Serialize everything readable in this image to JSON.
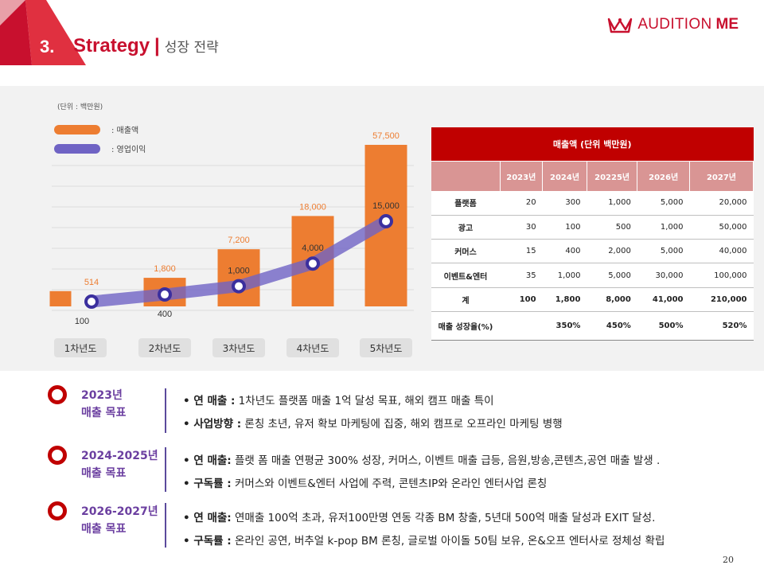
{
  "header": {
    "section_number": "3.",
    "title_en": "Strategy",
    "separator": "|",
    "title_ko": "성장 전략",
    "logo_text_light": "AUDITION",
    "logo_text_bold": "ME",
    "logo_icon": "crown-icon",
    "accent_color": "#c8102e"
  },
  "chart_legend": {
    "unit": "(단위 : 백만원)",
    "revenue_label": ": 매출액",
    "profit_label": ": 영업이익",
    "revenue_color": "#ed7d31",
    "profit_color": "#6f63c4"
  },
  "chart_data": {
    "type": "bar",
    "categories": [
      "1차년도",
      "2차년도",
      "3차년도",
      "4차년도",
      "5차년도"
    ],
    "series": [
      {
        "name": "매출액",
        "type": "bar",
        "values": [
          514,
          1800,
          7200,
          18000,
          57500
        ],
        "labels": [
          "514",
          "1,800",
          "7,200",
          "18,000",
          "57,500"
        ],
        "color": "#ed7d31"
      },
      {
        "name": "영업이익",
        "type": "line",
        "values": [
          100,
          400,
          1000,
          4000,
          15000
        ],
        "labels": [
          "100",
          "400",
          "1,000",
          "4,000",
          "15,000"
        ],
        "color": "#6f63c4"
      }
    ],
    "grid": true
  },
  "table": {
    "title": "매출액 (단위 백만원)",
    "columns": [
      "",
      "2023년",
      "2024년",
      "20225년",
      "2026년",
      "2027년"
    ],
    "rows": [
      [
        "플랫폼",
        "20",
        "300",
        "1,000",
        "5,000",
        "20,000"
      ],
      [
        "광고",
        "30",
        "100",
        "500",
        "1,000",
        "50,000"
      ],
      [
        "커머스",
        "15",
        "400",
        "2,000",
        "5,000",
        "40,000"
      ],
      [
        "이벤트&엔터",
        "35",
        "1,000",
        "5,000",
        "30,000",
        "100,000"
      ],
      [
        "계",
        "100",
        "1,800",
        "8,000",
        "41,000",
        "210,000"
      ],
      [
        "매출 성장율(%)",
        "",
        "350%",
        "450%",
        "500%",
        "520%"
      ]
    ]
  },
  "goals": [
    {
      "title_line1": "2023년",
      "title_line2": "매출 목표",
      "bullets": [
        {
          "label": "• 연 매출 :",
          "text": "   1차년도 플랫폼 매출 1억 달성 목표, 해외 캠프 매출 특이"
        },
        {
          "label": "• 사업방향 :",
          "text": " 론칭 초년, 유저 확보 마케팅에 집중, 해외 캠프로 오프라인 마케팅 병행"
        }
      ]
    },
    {
      "title_line1": "2024-2025년",
      "title_line2": "매출 목표",
      "bullets": [
        {
          "label": "• 연 매출:",
          "text": " 플랫 폼 매출 연평균 300% 성장, 커머스, 이벤트 매출 급등, 음원,방송,콘텐츠,공연 매출 발생 ."
        },
        {
          "label": "• 구독률 :",
          "text": " 커머스와 이벤트&엔터 사업에 주력,  콘텐츠IP와 온라인 엔터사업 론칭"
        }
      ]
    },
    {
      "title_line1": "2026-2027년",
      "title_line2": "매출 목표",
      "bullets": [
        {
          "label": "• 연 매출:",
          "text": " 연매출 100억 초과, 유저100만명 연동 각종 BM 창출, 5년대 500억 매출 달성과 EXIT 달성."
        },
        {
          "label": "• 구독률 :",
          "text": "  온라인 공연, 버추얼 k-pop BM 론칭,  글로벌 아이돌 50팀 보유, 온&오프 엔터사로 정체성 확립"
        }
      ]
    }
  ],
  "page_number": "20"
}
